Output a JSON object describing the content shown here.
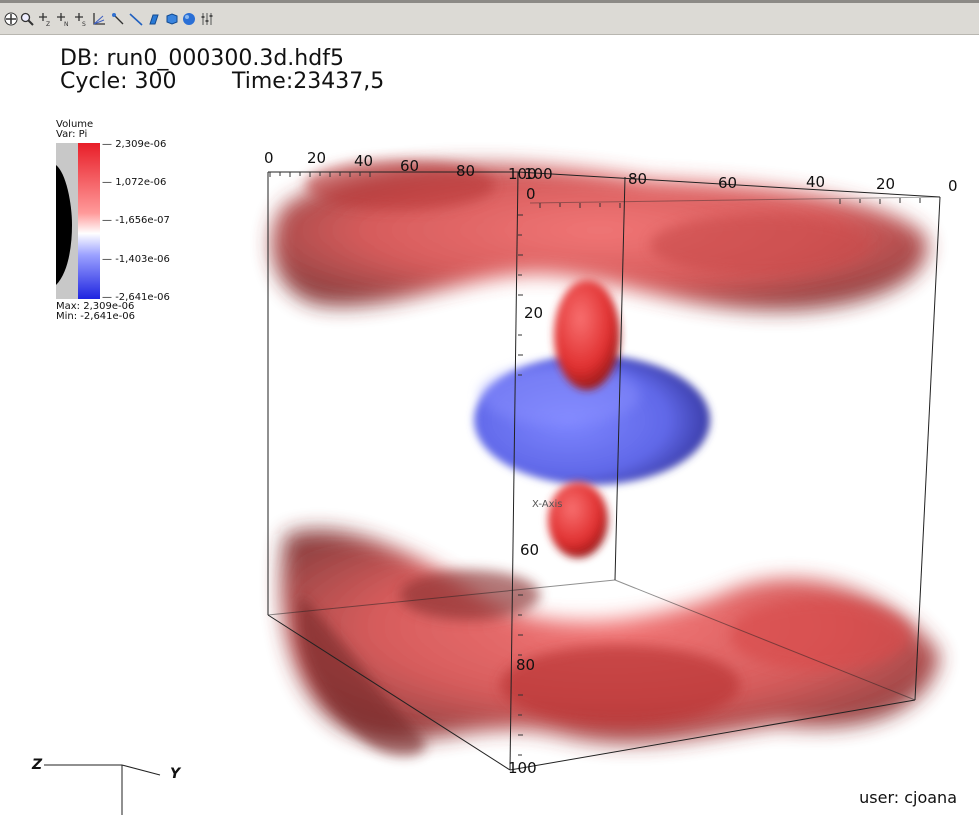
{
  "toolbar": {
    "icons": [
      "navigate-icon",
      "zoom-icon",
      "add-z-icon",
      "add-n-icon",
      "add-s-icon",
      "axis-icon",
      "pick-icon",
      "line-icon",
      "lineout-icon",
      "box-icon",
      "sphere-icon",
      "sliders-icon"
    ]
  },
  "info": {
    "db": "DB: run0_000300.3d.hdf5",
    "cycle": "Cycle: 300",
    "time": "Time:23437,5"
  },
  "legend": {
    "title": "Volume",
    "var": "Var: Pi",
    "ticks": [
      "2,309e-06",
      "1,072e-06",
      "-1,656e-07",
      "-1,403e-06",
      "-2,641e-06"
    ],
    "max": "Max: 2,309e-06",
    "min": "Min: -2,641e-06",
    "colors": {
      "high": "#e8202a",
      "mid": "#ffffff",
      "low": "#2030e0",
      "opacity_gray": "#c8c8c8",
      "opacity_black": "#000000"
    }
  },
  "axes": {
    "top_left_ticks": [
      "0",
      "20",
      "40",
      "60",
      "80",
      "100"
    ],
    "top_right_ticks": [
      "100",
      "80",
      "60",
      "40",
      "20",
      "0"
    ],
    "vertical_ticks": [
      "0",
      "20",
      "60",
      "80",
      "100"
    ],
    "x_axis_label": "X-Axis",
    "triad": {
      "z": "Z",
      "y": "Y"
    }
  },
  "user": "user: cjoana",
  "colors": {
    "red": "#e05050",
    "blue": "#6a72f0"
  }
}
